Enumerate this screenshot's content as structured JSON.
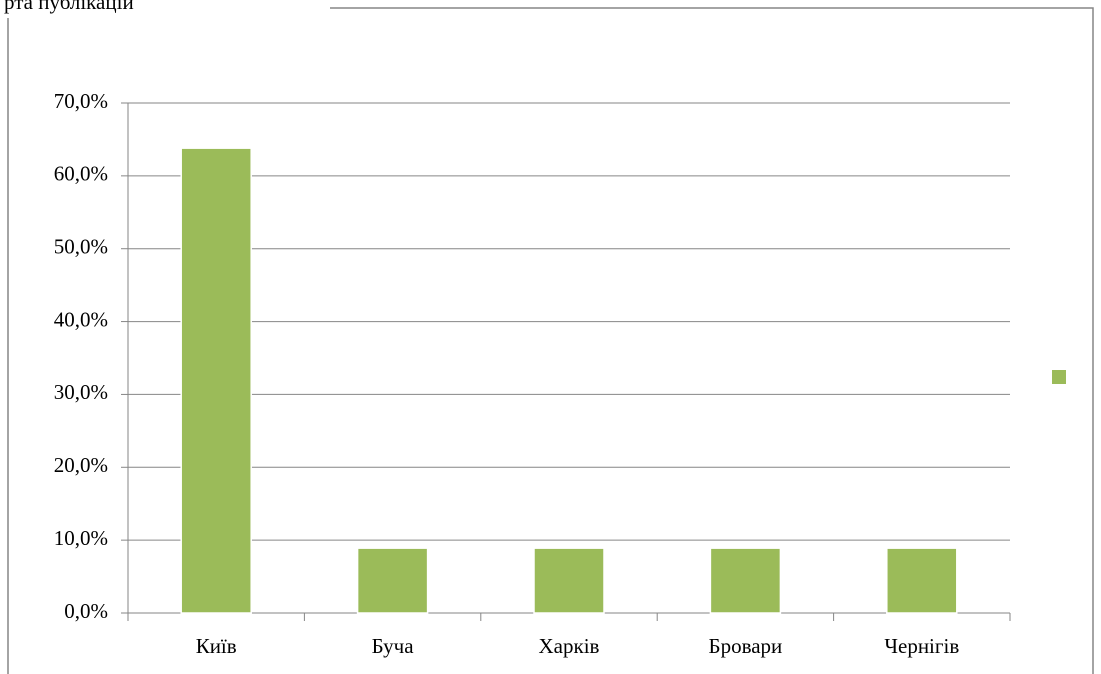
{
  "caption": "рта публікацій",
  "chart_data": {
    "type": "bar",
    "categories": [
      "Київ",
      "Буча",
      "Харків",
      "Бровари",
      "Чернігів"
    ],
    "values": [
      63.8,
      8.9,
      8.9,
      8.9,
      8.9
    ],
    "color": "#9bbb59",
    "ylim": [
      0,
      70
    ],
    "yticks": [
      {
        "value": 0,
        "label": "0,0%"
      },
      {
        "value": 10,
        "label": "10,0%"
      },
      {
        "value": 20,
        "label": "20,0%"
      },
      {
        "value": 30,
        "label": "30,0%"
      },
      {
        "value": 40,
        "label": "40,0%"
      },
      {
        "value": 50,
        "label": "50,0%"
      },
      {
        "value": 60,
        "label": "60,0%"
      },
      {
        "value": 70,
        "label": "70,0%"
      }
    ],
    "grid": true
  }
}
